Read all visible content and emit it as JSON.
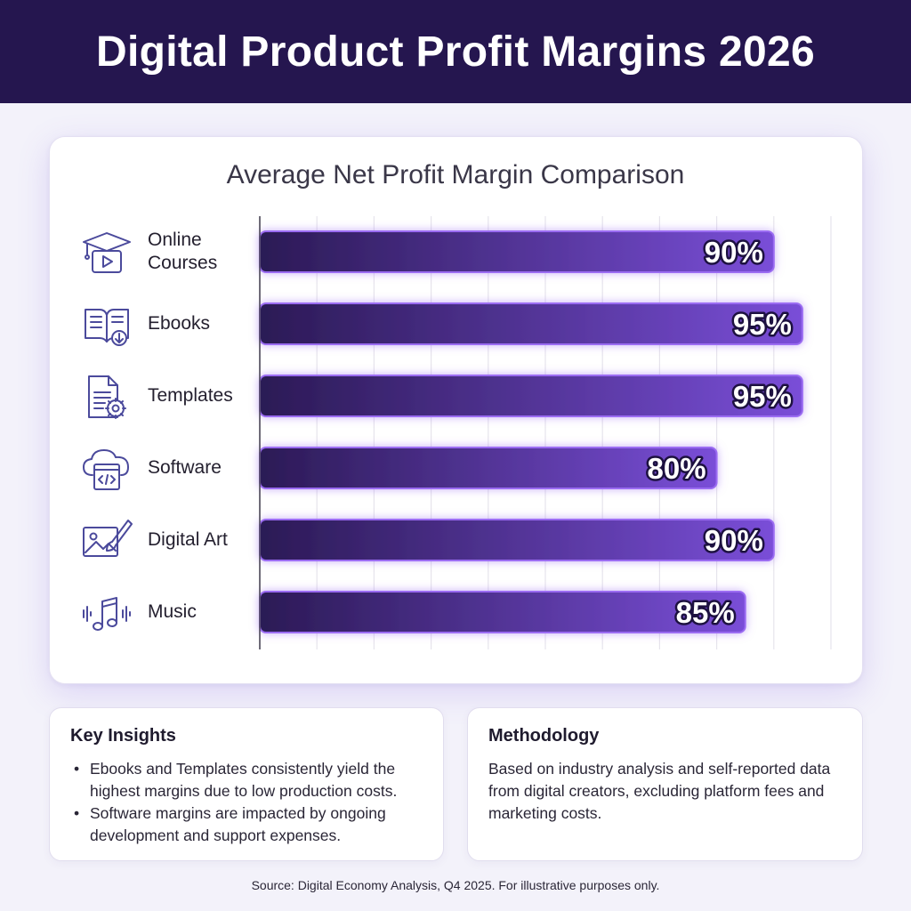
{
  "header": {
    "title": "Digital Product Profit Margins 2026"
  },
  "chart_data": {
    "type": "bar",
    "orientation": "horizontal",
    "title": "Average Net Profit Margin Comparison",
    "categories": [
      "Online Courses",
      "Ebooks",
      "Templates",
      "Software",
      "Digital Art",
      "Music"
    ],
    "values": [
      90,
      95,
      95,
      80,
      90,
      85
    ],
    "data_labels": [
      "90%",
      "95%",
      "95%",
      "80%",
      "90%",
      "85%"
    ],
    "xlim": [
      0,
      100
    ],
    "grid": true,
    "legend": "none",
    "icons": [
      "graduation-cap-video-icon",
      "open-book-download-icon",
      "document-gear-icon",
      "cloud-code-icon",
      "image-brush-icon",
      "music-note-soundwave-icon"
    ]
  },
  "colors": {
    "header_bg": "#25164f",
    "bar_dark": "#2b1a55",
    "bar_light": "#7a4ed8",
    "bar_glow": "#9b6cf2",
    "icon_stroke": "#4b4a9c",
    "page_bg": "#f3f2fa"
  },
  "insights": {
    "heading": "Key Insights",
    "items": [
      "Ebooks and Templates consistently yield the highest margins due to low production costs.",
      "Software margins are impacted by ongoing development and support expenses."
    ]
  },
  "methodology": {
    "heading": "Methodology",
    "text": "Based on industry analysis and self-reported data from digital creators, excluding platform fees and marketing costs."
  },
  "footer": {
    "source": "Source: Digital Economy Analysis, Q4 2025. For illustrative purposes only."
  }
}
